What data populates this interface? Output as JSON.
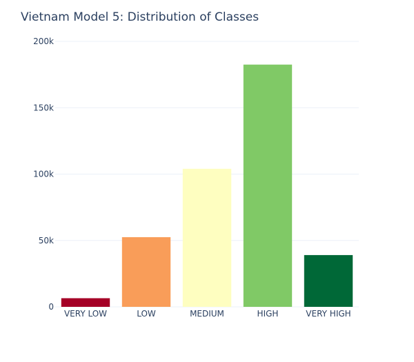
{
  "chart_data": {
    "type": "bar",
    "title": "Vietnam Model 5: Distribution of Classes",
    "xlabel": "",
    "ylabel": "",
    "categories": [
      "VERY LOW",
      "LOW",
      "MEDIUM",
      "HIGH",
      "VERY HIGH"
    ],
    "values": [
      6500,
      52500,
      104000,
      182500,
      39000
    ],
    "colors": [
      "#a50026",
      "#f99d59",
      "#fefec0",
      "#80c966",
      "#006837"
    ],
    "ylim": [
      0,
      200000
    ],
    "yticks": [
      {
        "value": 0,
        "label": "0"
      },
      {
        "value": 50000,
        "label": "50k"
      },
      {
        "value": 100000,
        "label": "100k"
      },
      {
        "value": 150000,
        "label": "150k"
      },
      {
        "value": 200000,
        "label": "200k"
      }
    ],
    "grid": true,
    "legend": "none"
  }
}
